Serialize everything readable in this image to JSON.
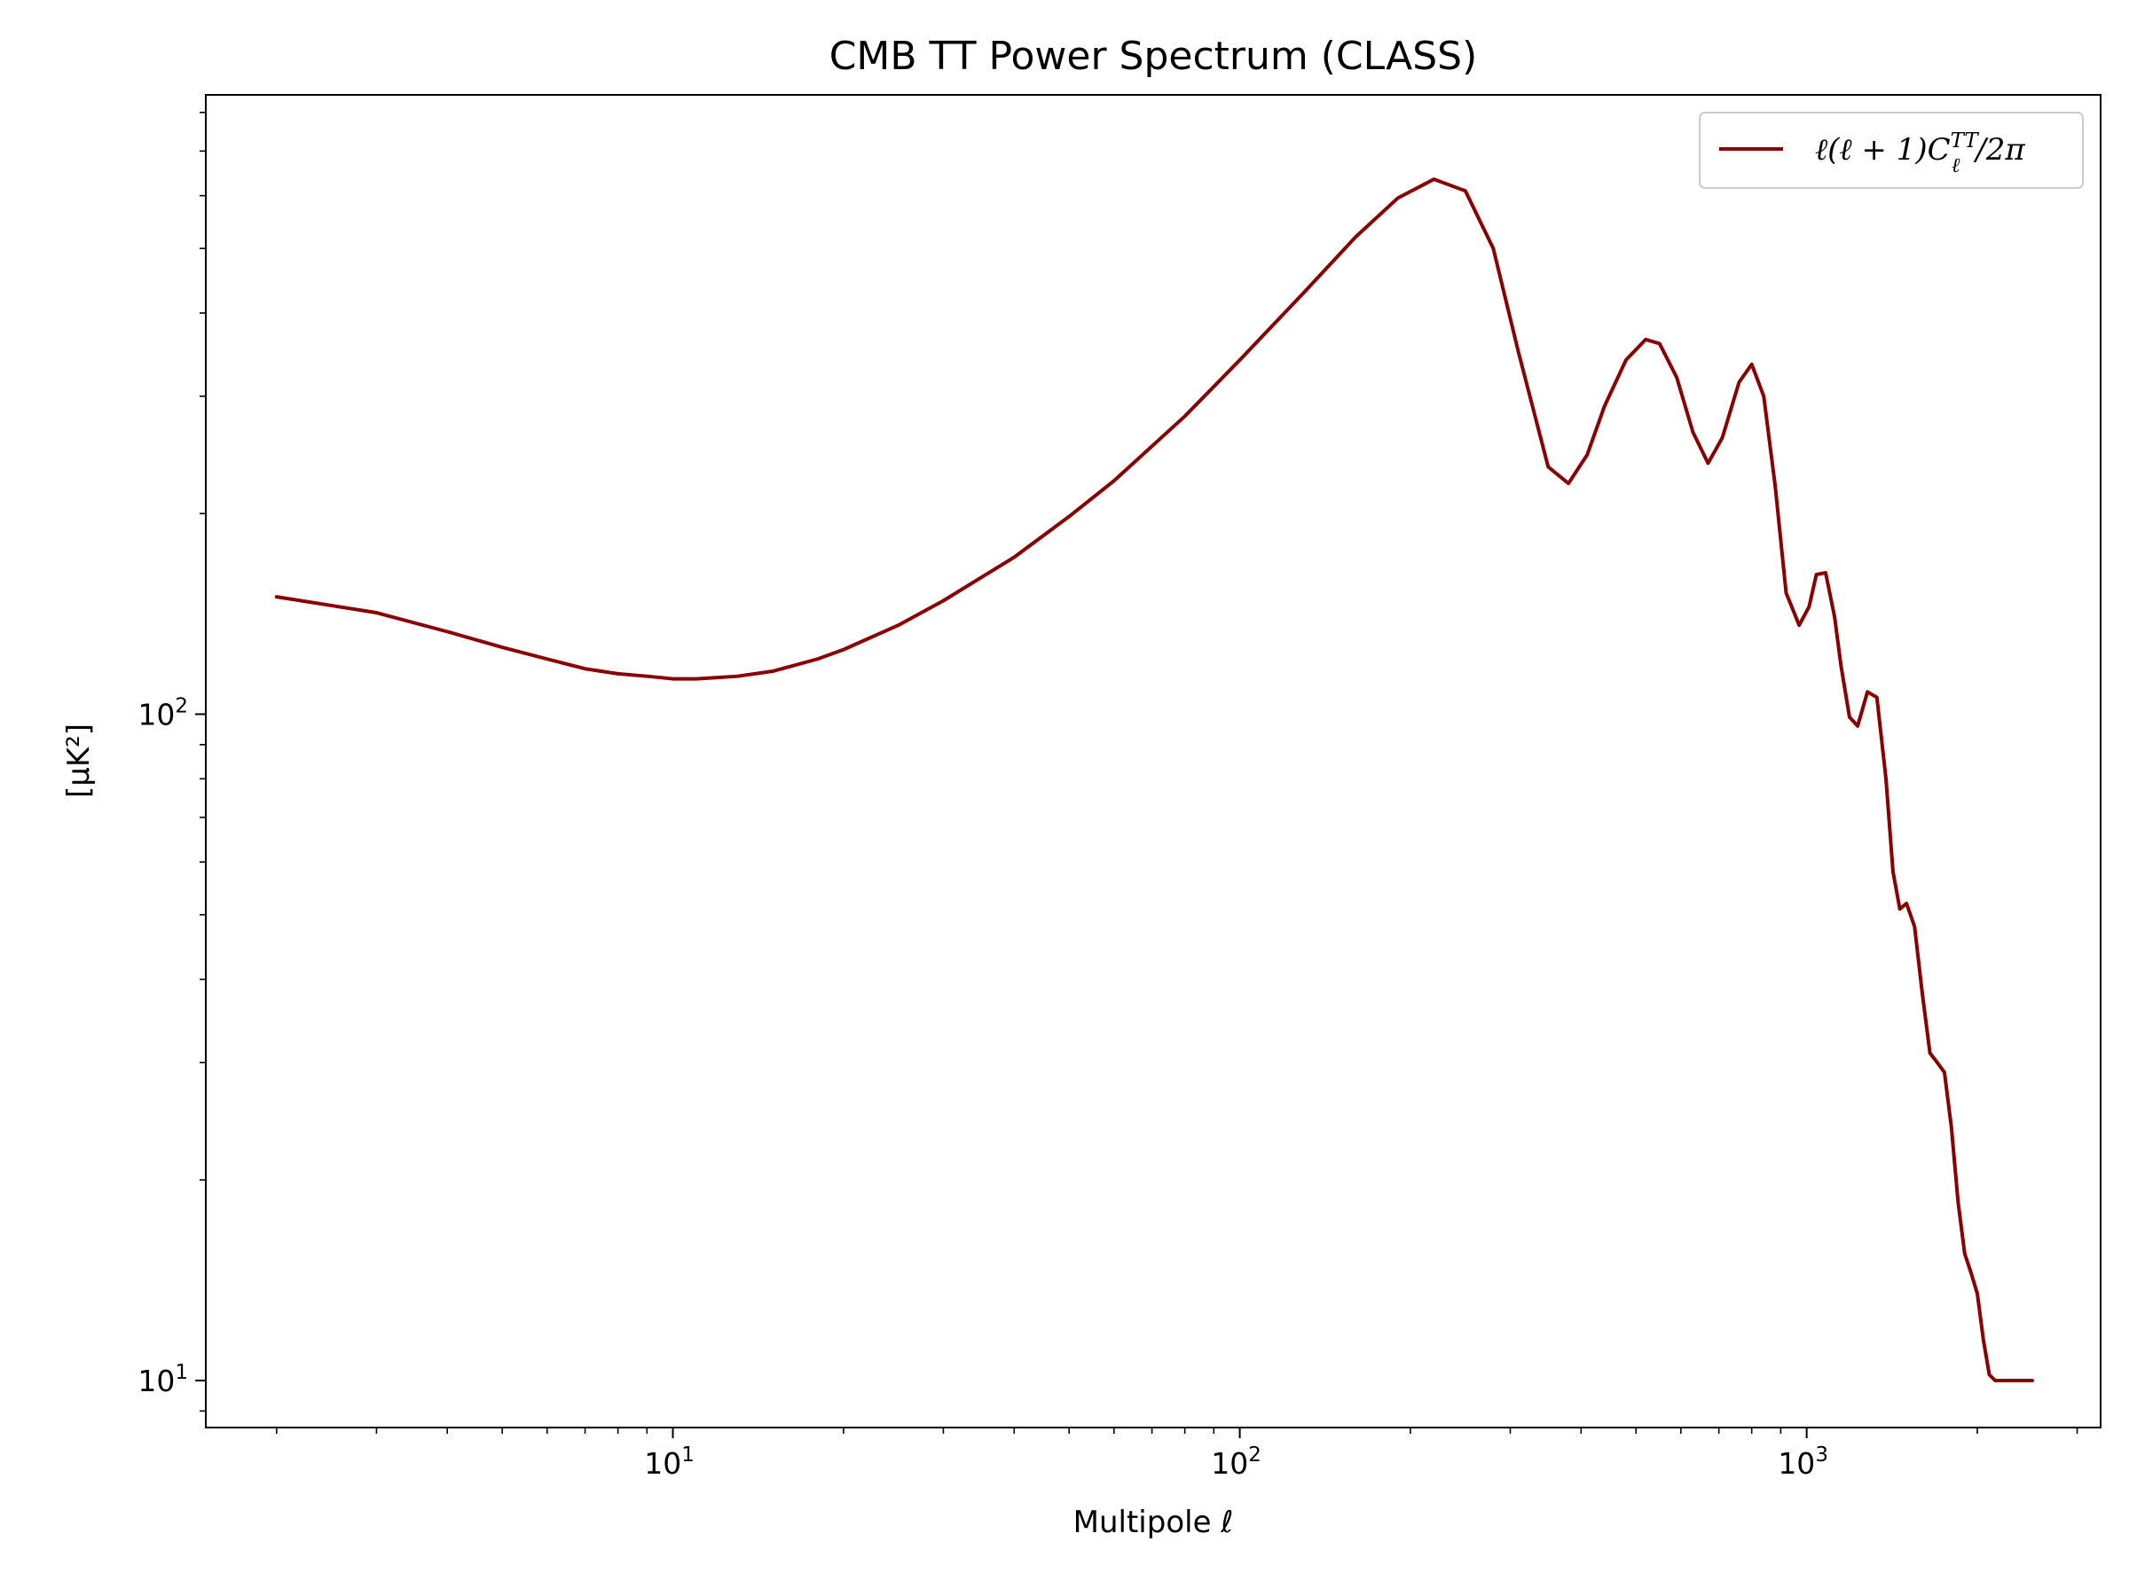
{
  "chart_data": {
    "type": "line",
    "title": "CMB TT Power Spectrum (CLASS)",
    "xlabel": "Multipole ℓ",
    "ylabel": "[μK²]",
    "xscale": "log",
    "yscale": "log",
    "xlim": [
      1.5,
      3300
    ],
    "ylim": [
      8.5,
      850
    ],
    "grid": false,
    "legend_position": "top-right",
    "x_ticks": [
      {
        "base": "10",
        "exp": "1",
        "value": 10
      },
      {
        "base": "10",
        "exp": "2",
        "value": 100
      },
      {
        "base": "10",
        "exp": "3",
        "value": 1000
      }
    ],
    "y_ticks": [
      {
        "base": "10",
        "exp": "1",
        "value": 10
      },
      {
        "base": "10",
        "exp": "2",
        "value": 100
      }
    ],
    "series": [
      {
        "name": "ℓ(ℓ + 1)CℓTT/2π",
        "legend": {
          "main": "ℓ(ℓ + 1)C",
          "sup": "TT",
          "sub": "ℓ",
          "tail": "/2π"
        },
        "color": "#8b0000",
        "x": [
          2,
          3,
          4,
          5,
          6,
          7,
          8,
          9,
          10,
          11,
          12,
          13,
          15,
          18,
          20,
          25,
          30,
          40,
          50,
          60,
          80,
          100,
          130,
          160,
          190,
          220,
          250,
          280,
          310,
          350,
          380,
          410,
          440,
          480,
          520,
          550,
          590,
          630,
          670,
          710,
          760,
          800,
          840,
          880,
          920,
          970,
          1010,
          1040,
          1080,
          1120,
          1150,
          1190,
          1230,
          1280,
          1330,
          1380,
          1420,
          1460,
          1500,
          1550,
          1600,
          1650,
          1700,
          1750,
          1800,
          1850,
          1900,
          1950,
          2000,
          2050,
          2100,
          2150,
          2200,
          2250,
          2300,
          2350,
          2400,
          2450,
          2500
        ],
        "y": [
          150,
          142,
          133,
          126,
          121,
          117,
          115,
          114,
          113,
          113,
          113.5,
          114,
          116,
          121,
          125,
          136,
          148,
          172,
          198,
          224,
          280,
          340,
          430,
          520,
          595,
          635,
          610,
          500,
          350,
          235,
          222,
          245,
          290,
          340,
          365,
          360,
          320,
          265,
          238,
          260,
          315,
          335,
          300,
          220,
          152,
          136,
          145,
          162,
          163,
          140,
          118,
          99,
          96,
          108,
          106,
          80,
          58,
          51,
          52,
          48,
          38,
          31,
          30,
          29,
          24,
          18.5,
          15.5,
          14.5,
          13.5,
          11.5,
          10.2,
          10.0,
          10.0,
          10.0,
          10.0,
          10.0,
          10.0,
          10.0,
          10.0
        ]
      }
    ]
  }
}
